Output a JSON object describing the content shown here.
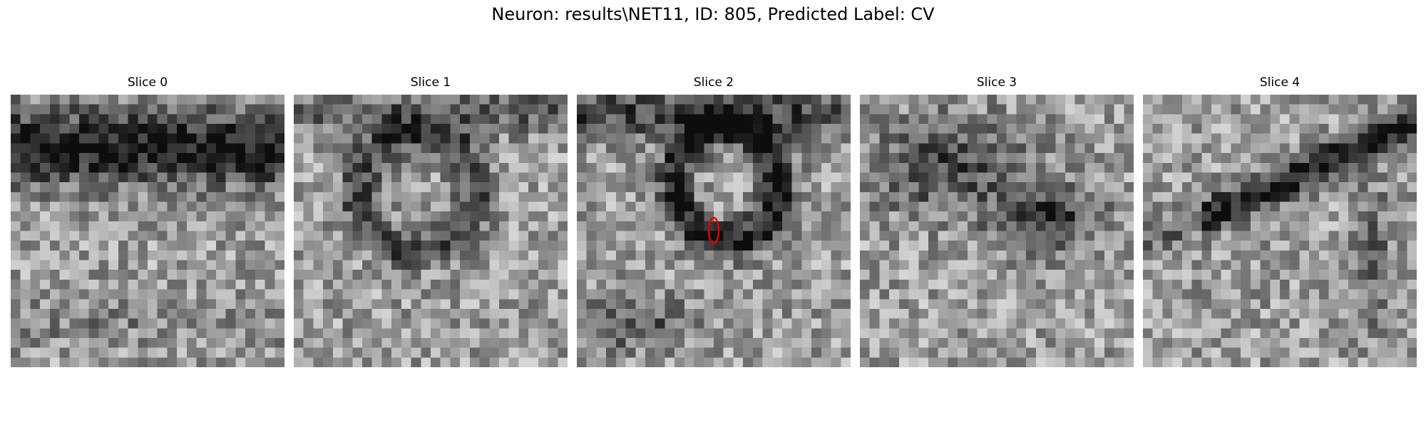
{
  "figure": {
    "title": "Neuron: results\\NET11, ID: 805, Predicted Label: CV"
  },
  "panels": [
    {
      "title": "Slice 0",
      "seed": 11,
      "pattern": "dark-top-band"
    },
    {
      "title": "Slice 1",
      "seed": 23,
      "pattern": "dark-ring-top"
    },
    {
      "title": "Slice 2",
      "seed": 37,
      "pattern": "dark-ring-center",
      "marker": {
        "color": "#e00000",
        "shape": "ellipse"
      }
    },
    {
      "title": "Slice 3",
      "seed": 49,
      "pattern": "dark-upper-blobs"
    },
    {
      "title": "Slice 4",
      "seed": 61,
      "pattern": "dark-diagonal-band"
    }
  ],
  "image": {
    "grid_size": 28,
    "colormap": "gray"
  }
}
